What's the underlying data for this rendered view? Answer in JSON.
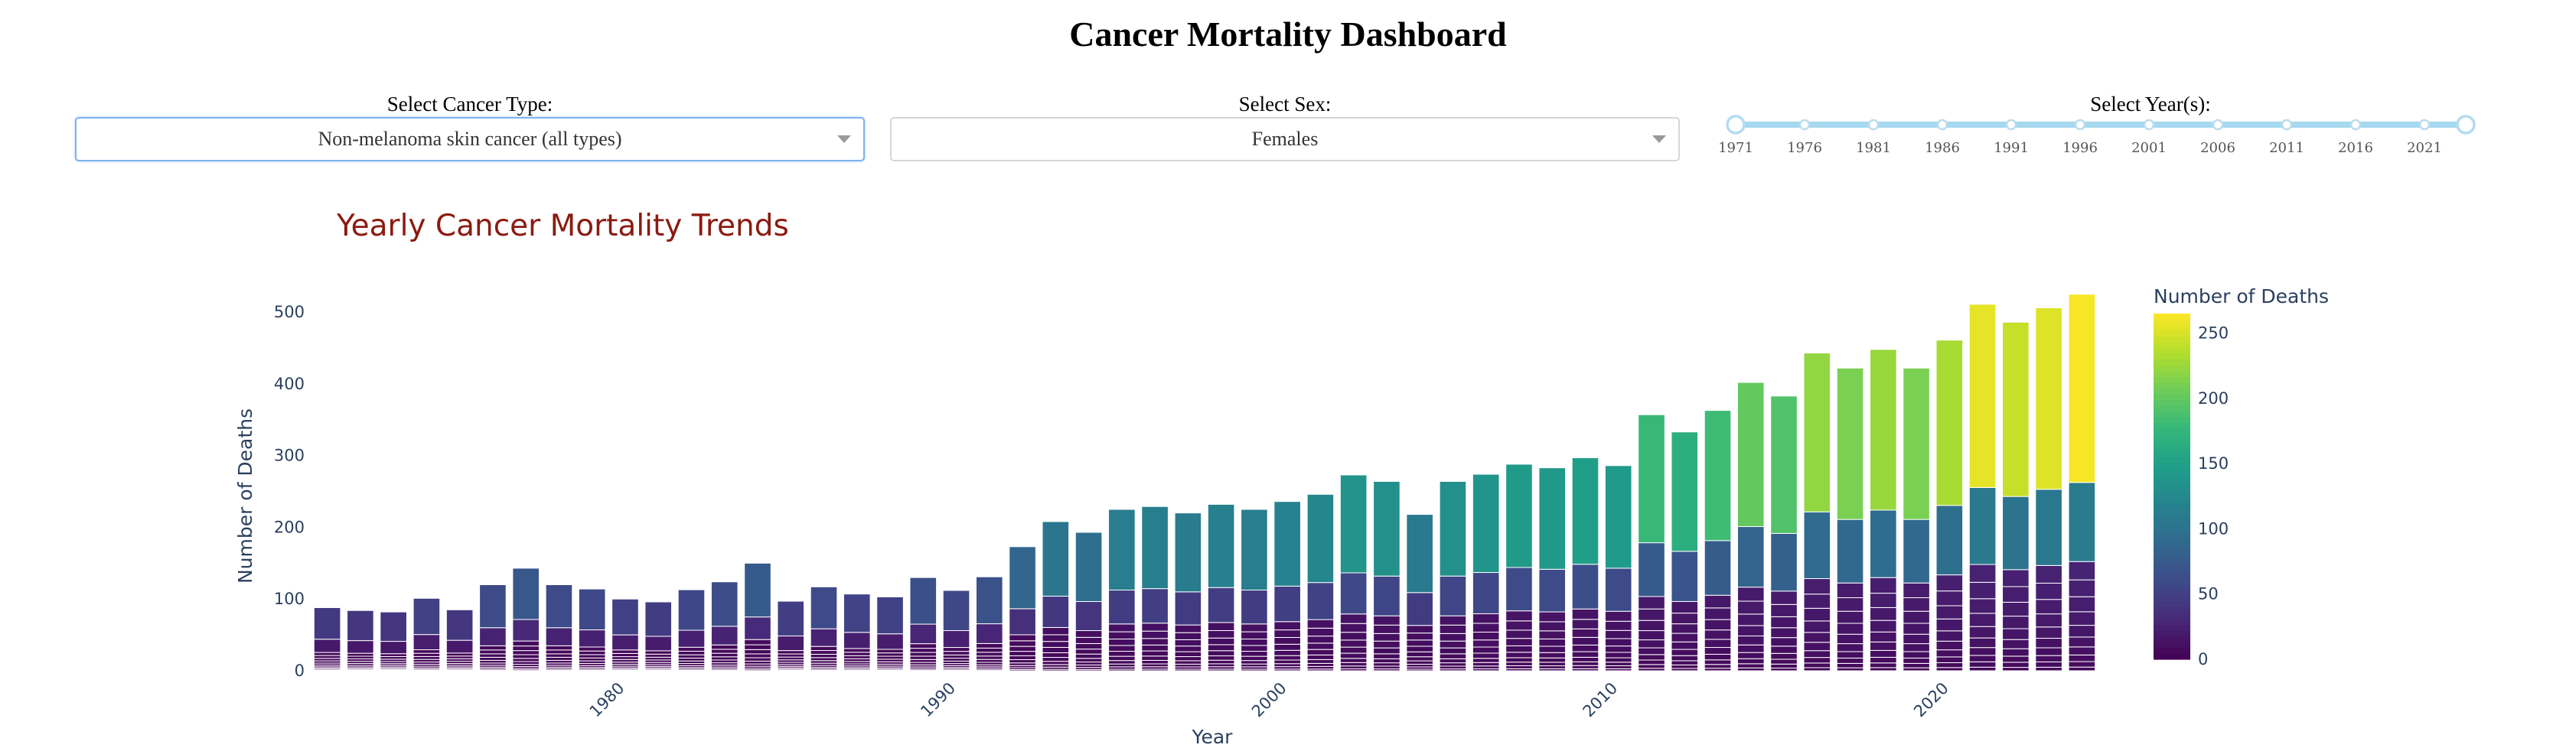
{
  "page": {
    "title": "Cancer Mortality Dashboard"
  },
  "controls": {
    "cancer_type": {
      "label": "Select Cancer Type:",
      "value": "Non-melanoma skin cancer (all types)"
    },
    "sex": {
      "label": "Select Sex:",
      "value": "Females"
    },
    "year": {
      "label": "Select Year(s):",
      "range": [
        1971,
        2024
      ],
      "marks": [
        "1971",
        "1976",
        "1981",
        "1986",
        "1991",
        "1996",
        "2001",
        "2006",
        "2011",
        "2016",
        "2021"
      ]
    }
  },
  "colors": {
    "accent": "#a6d8f0",
    "title": "#8b1a10",
    "axis_text": "#2a3f5f"
  },
  "chart_data": {
    "type": "bar",
    "title": "Yearly Cancer Mortality Trends",
    "xlabel": "Year",
    "ylabel": "Number of Deaths",
    "x_ticks": [
      "1980",
      "1990",
      "2000",
      "2010",
      "2020"
    ],
    "y_ticks": [
      "0",
      "100",
      "200",
      "300",
      "400",
      "500"
    ],
    "ylim": [
      0,
      530
    ],
    "xlim": [
      1970.5,
      2024.5
    ],
    "categories": [
      1971,
      1972,
      1973,
      1974,
      1975,
      1976,
      1977,
      1978,
      1979,
      1980,
      1981,
      1982,
      1983,
      1984,
      1985,
      1986,
      1987,
      1988,
      1989,
      1990,
      1991,
      1992,
      1993,
      1994,
      1995,
      1996,
      1997,
      1998,
      1999,
      2000,
      2001,
      2002,
      2003,
      2004,
      2005,
      2006,
      2007,
      2008,
      2009,
      2010,
      2011,
      2012,
      2013,
      2014,
      2015,
      2016,
      2017,
      2018,
      2019,
      2020,
      2021,
      2022,
      2023,
      2024
    ],
    "values": [
      88,
      84,
      82,
      101,
      85,
      120,
      143,
      120,
      114,
      100,
      96,
      113,
      124,
      150,
      97,
      117,
      107,
      103,
      130,
      112,
      131,
      173,
      208,
      193,
      225,
      229,
      220,
      232,
      225,
      236,
      246,
      273,
      264,
      218,
      264,
      274,
      288,
      283,
      297,
      286,
      357,
      333,
      363,
      402,
      383,
      443,
      422,
      448,
      422,
      461,
      511,
      486,
      506,
      525
    ],
    "stacking": "age-group segments; each bar split into stacked segments colored by segment death count",
    "colorbar": {
      "title": "Number of Deaths",
      "min": 0,
      "max": 265,
      "ticks": [
        "0",
        "50",
        "100",
        "150",
        "200",
        "250"
      ],
      "colorscale": "viridis"
    },
    "grid": false,
    "legend": "right (colorbar)"
  }
}
